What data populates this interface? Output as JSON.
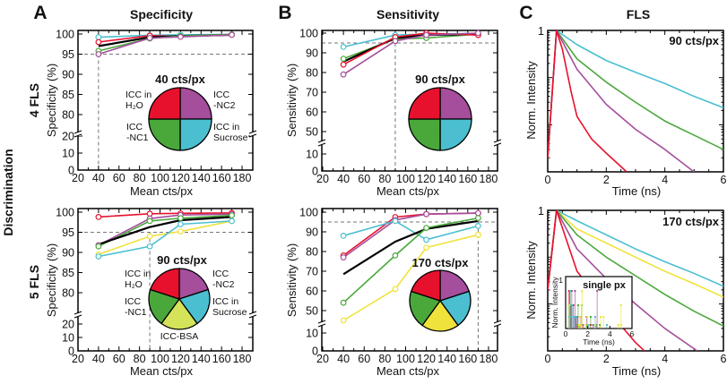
{
  "columns": [
    {
      "letter": "A",
      "title": "Specificity"
    },
    {
      "letter": "B",
      "title": "Sensitivity"
    },
    {
      "letter": "C",
      "title": "FLS"
    }
  ],
  "row_group_label": "Discrimination",
  "rows": [
    "4 FLS",
    "5 FLS"
  ],
  "colors": {
    "red": "#e8112d",
    "purple": "#a54e9c",
    "green": "#4aa83b",
    "cyan": "#4bbfd0",
    "yellow": "#efe23a",
    "black": "#000000",
    "reference_line": "#888888"
  },
  "chart_data": [
    {
      "type": "line",
      "panel": "A",
      "row": "4 FLS",
      "xlabel": "Mean cts/px",
      "ylabel": "Specificity (%)",
      "xlim": [
        20,
        180
      ],
      "x_ticks": [
        20,
        40,
        60,
        80,
        100,
        120,
        140,
        160,
        180
      ],
      "y_ticks": [
        0,
        10,
        20,
        80,
        85,
        90,
        95,
        100
      ],
      "y_axis_break": [
        25,
        75
      ],
      "reference_lines": {
        "y": 95,
        "x": 40
      },
      "x": [
        40,
        90,
        120,
        170
      ],
      "series": [
        {
          "color": "#4bbfd0",
          "markers": true,
          "values": [
            99.2,
            99.7,
            99.8,
            99.9
          ]
        },
        {
          "color": "#e8112d",
          "markers": true,
          "values": [
            98.0,
            99.6,
            99.4,
            99.8
          ]
        },
        {
          "color": "#000000",
          "markers": false,
          "values": [
            97.0,
            99.2,
            99.5,
            99.8
          ]
        },
        {
          "color": "#4aa83b",
          "markers": true,
          "values": [
            95.8,
            98.9,
            99.5,
            99.9
          ]
        },
        {
          "color": "#a54e9c",
          "markers": true,
          "values": [
            95.0,
            99.0,
            99.3,
            99.8
          ]
        }
      ],
      "pie": {
        "title": "40 cts/px",
        "slices": [
          {
            "color": "#a54e9c",
            "label": [
              "ICC",
              "-NC2"
            ]
          },
          {
            "color": "#4bbfd0",
            "label": [
              "ICC in",
              "Sucrose"
            ]
          },
          {
            "color": "#4aa83b",
            "label": [
              "ICC",
              "-NC1"
            ]
          },
          {
            "color": "#e8112d",
            "label": [
              "ICC in",
              "H₂O"
            ]
          }
        ]
      }
    },
    {
      "type": "line",
      "panel": "A",
      "row": "5 FLS",
      "xlabel": "Mean cts/px",
      "ylabel": "Specificity (%)",
      "xlim": [
        20,
        180
      ],
      "x_ticks": [
        20,
        40,
        60,
        80,
        100,
        120,
        140,
        160,
        180
      ],
      "y_ticks": [
        0,
        10,
        20,
        80,
        85,
        90,
        95,
        100
      ],
      "y_axis_break": [
        25,
        75
      ],
      "reference_lines": {
        "y": 95,
        "x": 90
      },
      "x": [
        40,
        90,
        120,
        170
      ],
      "series": [
        {
          "color": "#e8112d",
          "markers": true,
          "values": [
            98.8,
            99.6,
            99.7,
            99.8
          ]
        },
        {
          "color": "#a54e9c",
          "markers": true,
          "values": [
            91.8,
            98.4,
            99.3,
            99.5
          ]
        },
        {
          "color": "#4aa83b",
          "markers": true,
          "values": [
            91.5,
            97.8,
            98.5,
            99.2
          ]
        },
        {
          "color": "#000000",
          "markers": false,
          "values": [
            92.0,
            96.3,
            98.0,
            98.8
          ]
        },
        {
          "color": "#efe23a",
          "markers": true,
          "values": [
            89.5,
            94.0,
            95.2,
            97.8
          ]
        },
        {
          "color": "#4bbfd0",
          "markers": true,
          "values": [
            89.0,
            91.5,
            97.0,
            97.8
          ]
        }
      ],
      "pie": {
        "title": "90 cts/px",
        "slices": [
          {
            "color": "#a54e9c",
            "label": [
              "ICC",
              "-NC2"
            ]
          },
          {
            "color": "#4bbfd0",
            "label": [
              "ICC in",
              "Sucrose"
            ]
          },
          {
            "color": "#d4e35a",
            "label": [
              "ICC-BSA"
            ]
          },
          {
            "color": "#4aa83b",
            "label": [
              "ICC",
              "-NC1"
            ]
          },
          {
            "color": "#e8112d",
            "label": [
              "ICC in",
              "H₂O"
            ]
          }
        ]
      }
    },
    {
      "type": "line",
      "panel": "B",
      "row": "4 FLS",
      "xlabel": "Mean cts/px",
      "ylabel": "Sensitivity (%)",
      "xlim": [
        20,
        180
      ],
      "x_ticks": [
        20,
        40,
        60,
        80,
        100,
        120,
        140,
        160,
        180
      ],
      "y_ticks": [
        0,
        10,
        50,
        60,
        70,
        80,
        90,
        100
      ],
      "y_axis_break": [
        15,
        45
      ],
      "reference_lines": {
        "y": 95,
        "x": 90
      },
      "x": [
        40,
        90,
        120,
        170
      ],
      "series": [
        {
          "color": "#4bbfd0",
          "markers": true,
          "values": [
            93,
            99,
            99.5,
            99.8
          ]
        },
        {
          "color": "#4aa83b",
          "markers": true,
          "values": [
            87,
            97,
            97.5,
            99.5
          ]
        },
        {
          "color": "#000000",
          "markers": false,
          "values": [
            85.5,
            97.5,
            99,
            99.5
          ]
        },
        {
          "color": "#e8112d",
          "markers": true,
          "values": [
            84,
            98,
            100,
            99
          ]
        },
        {
          "color": "#a54e9c",
          "markers": true,
          "values": [
            79,
            96,
            99,
            100
          ]
        }
      ],
      "pie": {
        "title": "90 cts/px",
        "slices": [
          {
            "color": "#a54e9c"
          },
          {
            "color": "#4bbfd0"
          },
          {
            "color": "#4aa83b"
          },
          {
            "color": "#e8112d"
          }
        ]
      }
    },
    {
      "type": "line",
      "panel": "B",
      "row": "5 FLS",
      "xlabel": "Mean cts/px",
      "ylabel": "Sensitivity (%)",
      "xlim": [
        20,
        180
      ],
      "x_ticks": [
        20,
        40,
        60,
        80,
        100,
        120,
        140,
        160,
        180
      ],
      "y_ticks": [
        0,
        10,
        50,
        60,
        70,
        80,
        90,
        100
      ],
      "y_axis_break": [
        15,
        45
      ],
      "reference_lines": {
        "y": 95,
        "x": 170
      },
      "x": [
        40,
        90,
        120,
        170
      ],
      "series": [
        {
          "color": "#e8112d",
          "markers": true,
          "values": [
            78,
            97.5,
            99,
            99.5
          ]
        },
        {
          "color": "#a54e9c",
          "markers": true,
          "values": [
            77,
            96,
            99,
            99.5
          ]
        },
        {
          "color": "#4bbfd0",
          "markers": true,
          "values": [
            88,
            95.5,
            86,
            93
          ]
        },
        {
          "color": "#000000",
          "markers": false,
          "values": [
            68.5,
            85,
            91.5,
            95.5
          ]
        },
        {
          "color": "#4aa83b",
          "markers": true,
          "values": [
            54,
            78,
            92,
            97
          ]
        },
        {
          "color": "#efe23a",
          "markers": true,
          "values": [
            45,
            61,
            82,
            88.5
          ]
        }
      ],
      "pie": {
        "title": "170 cts/px",
        "slices": [
          {
            "color": "#a54e9c"
          },
          {
            "color": "#4bbfd0"
          },
          {
            "color": "#efe23a"
          },
          {
            "color": "#4aa83b"
          },
          {
            "color": "#e8112d"
          }
        ]
      }
    },
    {
      "type": "line",
      "panel": "C",
      "row": "4 FLS",
      "xlabel": "Time (ns)",
      "ylabel": "Norm. Intensity",
      "xlim": [
        0,
        6
      ],
      "x_ticks": [
        0,
        2,
        4,
        6
      ],
      "y_scale": "log",
      "ylim": [
        0.001,
        1
      ],
      "y_tick_labels": [
        "1"
      ],
      "annotation": "90 cts/px",
      "series": [
        {
          "color": "#4bbfd0",
          "points": [
            [
              0,
              0.002
            ],
            [
              0.3,
              1
            ],
            [
              1,
              0.5
            ],
            [
              2,
              0.23
            ],
            [
              3,
              0.13
            ],
            [
              4,
              0.075
            ],
            [
              5,
              0.04
            ],
            [
              6,
              0.023
            ]
          ]
        },
        {
          "color": "#4aa83b",
          "points": [
            [
              0,
              0.002
            ],
            [
              0.3,
              1
            ],
            [
              1,
              0.25
            ],
            [
              2,
              0.08
            ],
            [
              3,
              0.03
            ],
            [
              4,
              0.012
            ],
            [
              5,
              0.006
            ],
            [
              6,
              0.003
            ]
          ]
        },
        {
          "color": "#a54e9c",
          "points": [
            [
              0,
              0.002
            ],
            [
              0.3,
              1
            ],
            [
              1,
              0.15
            ],
            [
              2,
              0.027
            ],
            [
              3,
              0.008
            ],
            [
              4,
              0.003
            ],
            [
              5,
              0.001
            ]
          ]
        },
        {
          "color": "#e8112d",
          "points": [
            [
              0,
              0.002
            ],
            [
              0.3,
              1
            ],
            [
              0.5,
              0.4
            ],
            [
              0.8,
              0.05
            ],
            [
              1,
              0.015
            ],
            [
              1.5,
              0.005
            ],
            [
              2,
              0.0025
            ],
            [
              2.7,
              0.001
            ]
          ]
        }
      ]
    },
    {
      "type": "line",
      "panel": "C",
      "row": "5 FLS",
      "xlabel": "Time (ns)",
      "ylabel": "Norm. Intensity",
      "xlim": [
        0,
        6
      ],
      "x_ticks": [
        0,
        2,
        4,
        6
      ],
      "y_scale": "log",
      "ylim": [
        0.001,
        1
      ],
      "y_tick_labels": [
        "1"
      ],
      "annotation": "170 cts/px",
      "series": [
        {
          "color": "#4bbfd0",
          "points": [
            [
              0,
              0.02
            ],
            [
              0.3,
              1
            ],
            [
              1,
              0.6
            ],
            [
              2,
              0.3
            ],
            [
              3,
              0.15
            ],
            [
              4,
              0.08
            ],
            [
              5,
              0.045
            ],
            [
              6,
              0.024
            ]
          ]
        },
        {
          "color": "#efe23a",
          "points": [
            [
              0,
              0.02
            ],
            [
              0.3,
              1
            ],
            [
              1,
              0.4
            ],
            [
              2,
              0.2
            ],
            [
              3,
              0.1
            ],
            [
              4,
              0.05
            ],
            [
              5,
              0.027
            ],
            [
              6,
              0.014
            ]
          ]
        },
        {
          "color": "#4aa83b",
          "points": [
            [
              0,
              0.02
            ],
            [
              0.3,
              1
            ],
            [
              1,
              0.3
            ],
            [
              2,
              0.1
            ],
            [
              3,
              0.04
            ],
            [
              4,
              0.016
            ],
            [
              5,
              0.007
            ],
            [
              6,
              0.0034
            ]
          ]
        },
        {
          "color": "#a54e9c",
          "points": [
            [
              0,
              0.02
            ],
            [
              0.3,
              1
            ],
            [
              1,
              0.15
            ],
            [
              2,
              0.035
            ],
            [
              3,
              0.01
            ],
            [
              4,
              0.003
            ],
            [
              5.1,
              0.001
            ]
          ]
        },
        {
          "color": "#e8112d",
          "points": [
            [
              0,
              0.02
            ],
            [
              0.3,
              1
            ],
            [
              1,
              0.05
            ],
            [
              2,
              0.008
            ],
            [
              3,
              0.0015
            ],
            [
              3.3,
              0.001
            ]
          ]
        }
      ],
      "inset": {
        "title": "single px",
        "xlabel": "Time (ns)",
        "ylabel": "Norm. Intensity",
        "x_ticks": [
          0,
          2,
          4,
          6
        ],
        "y_tick_labels": [
          "1"
        ]
      }
    }
  ]
}
